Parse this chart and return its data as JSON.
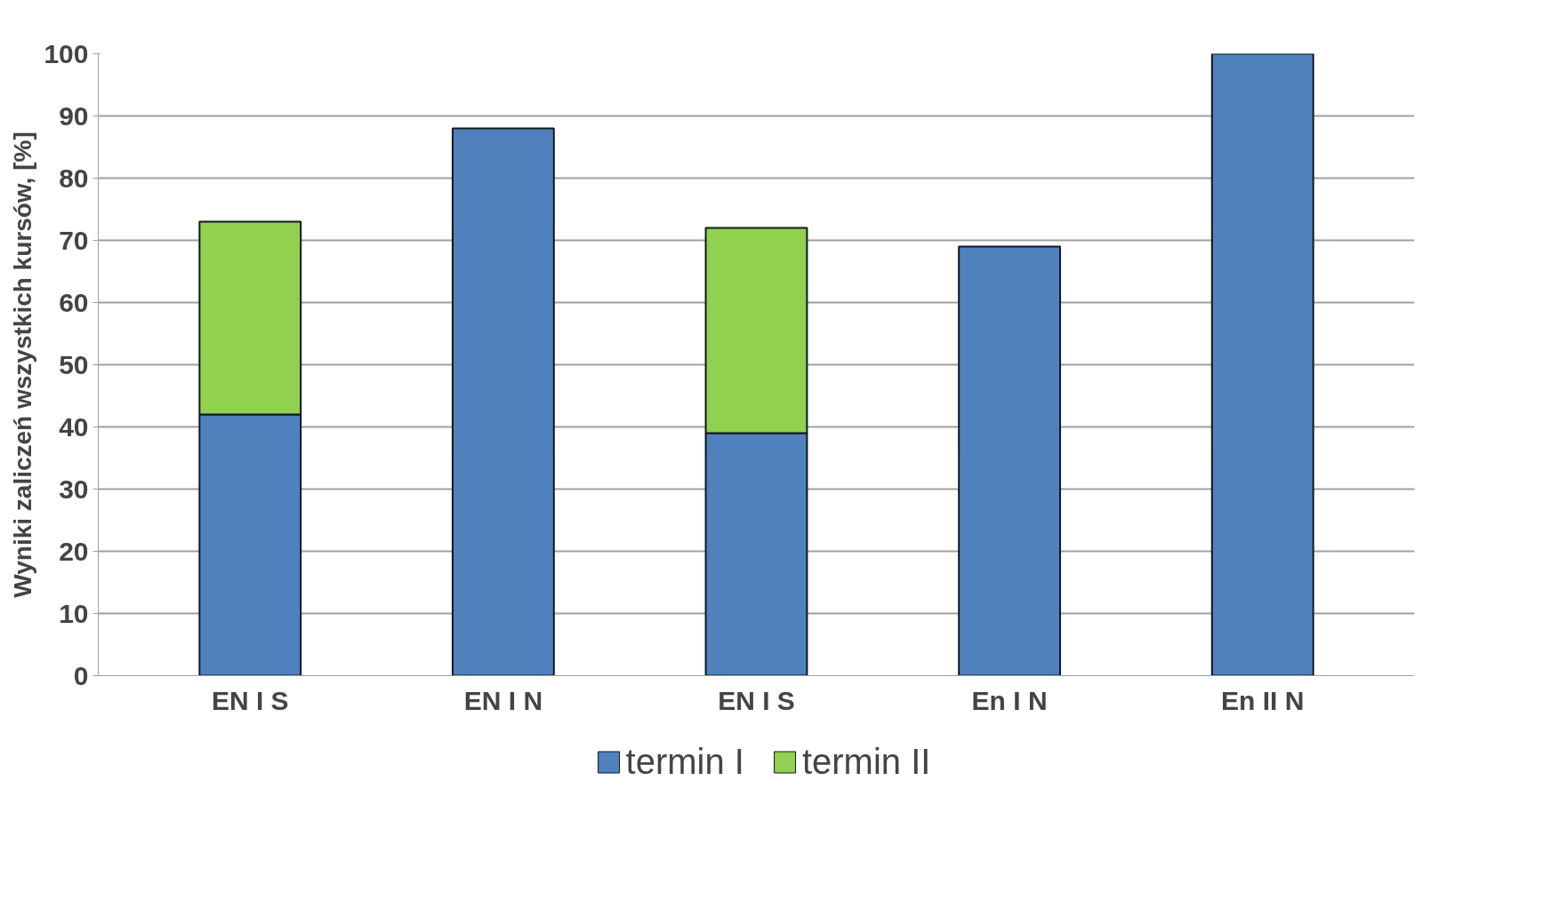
{
  "chart_data": {
    "type": "bar",
    "stacked": true,
    "ylabel": "Wyniki zaliczeń wszystkich kursów, [%]",
    "categories": [
      "EN I S",
      "EN I N",
      "EN I S",
      "En I N",
      "En II N"
    ],
    "series": [
      {
        "name": "termin I",
        "color": "#4f81bd",
        "values": [
          42,
          88,
          39,
          69,
          100
        ]
      },
      {
        "name": "termin II",
        "color": "#92d050",
        "values": [
          31,
          0,
          33,
          0,
          0
        ]
      }
    ],
    "ylim": [
      0,
      100
    ],
    "yticks": [
      0,
      10,
      20,
      30,
      40,
      50,
      60,
      70,
      80,
      90,
      100
    ],
    "grid": "y",
    "legend": "bottom"
  }
}
